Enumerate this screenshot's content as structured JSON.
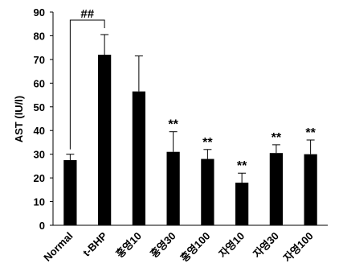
{
  "chart_data": {
    "type": "bar",
    "y_label": "AST (IU/l)",
    "categories": [
      "Normal",
      "t-BHP",
      "홍영10",
      "홍영30",
      "홍영100",
      "자영10",
      "자영30",
      "자영100"
    ],
    "values": [
      27.5,
      72,
      56.5,
      31,
      28,
      18,
      30.5,
      30
    ],
    "errors": [
      2.5,
      8.5,
      15,
      8.5,
      4,
      4,
      3.5,
      6
    ],
    "significance": [
      null,
      null,
      null,
      "**",
      "**",
      "**",
      "**",
      "**"
    ],
    "bracket_label": "##",
    "color": "#000000",
    "ylim": [
      0,
      90
    ],
    "yticks": [
      0,
      10,
      20,
      30,
      40,
      50,
      60,
      70,
      80,
      90
    ]
  }
}
